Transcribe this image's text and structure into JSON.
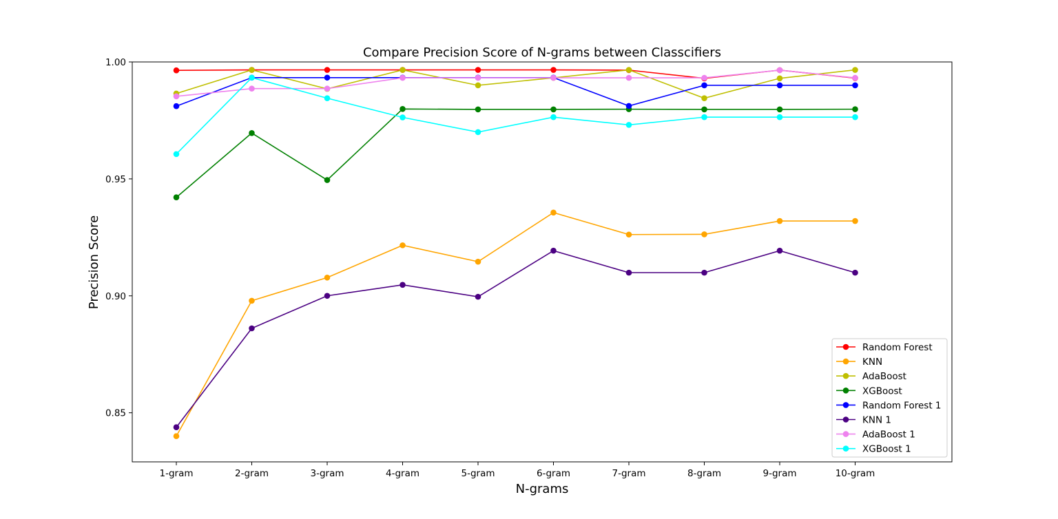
{
  "chart_data": {
    "type": "line",
    "title": "Compare Precision Score of N-grams between Classcifiers",
    "xlabel": "N-grams",
    "ylabel": "Precision Score",
    "categories": [
      "1-gram",
      "2-gram",
      "3-gram",
      "4-gram",
      "5-gram",
      "6-gram",
      "7-gram",
      "8-gram",
      "9-gram",
      "10-gram"
    ],
    "ylim": [
      0.829,
      1.0
    ],
    "yticks": [
      0.85,
      0.9,
      0.95,
      1.0
    ],
    "ytick_labels": [
      "0.85",
      "0.90",
      "0.95",
      "1.00"
    ],
    "grid": false,
    "legend_position": "lower-right",
    "series": [
      {
        "name": "Random Forest",
        "color": "#ff0000",
        "values": [
          0.9964,
          0.9966,
          0.9966,
          0.9966,
          0.9966,
          0.9966,
          0.9965,
          0.993,
          0.9965,
          0.9931
        ]
      },
      {
        "name": "KNN",
        "color": "#ffa500",
        "values": [
          0.84,
          0.8979,
          0.9078,
          0.9216,
          0.9146,
          0.9356,
          0.9262,
          0.9263,
          0.932,
          0.932
        ]
      },
      {
        "name": "AdaBoost",
        "color": "#bfbf00",
        "values": [
          0.9865,
          0.9966,
          0.9885,
          0.9966,
          0.99,
          0.9932,
          0.9966,
          0.9845,
          0.993,
          0.9966
        ]
      },
      {
        "name": "XGBoost",
        "color": "#008000",
        "values": [
          0.9421,
          0.9696,
          0.9495,
          0.9799,
          0.9797,
          0.9797,
          0.9798,
          0.9797,
          0.9797,
          0.9798
        ]
      },
      {
        "name": "Random Forest 1",
        "color": "#0000ff",
        "values": [
          0.9811,
          0.9933,
          0.9933,
          0.9933,
          0.9933,
          0.9933,
          0.9812,
          0.99,
          0.99,
          0.99
        ]
      },
      {
        "name": "KNN 1",
        "color": "#4b0082",
        "values": [
          0.8438,
          0.8861,
          0.9,
          0.9047,
          0.8996,
          0.9193,
          0.9099,
          0.9099,
          0.9193,
          0.9099
        ]
      },
      {
        "name": "AdaBoost 1",
        "color": "#ee82ee",
        "values": [
          0.9853,
          0.9886,
          0.9886,
          0.9932,
          0.9932,
          0.9932,
          0.9932,
          0.9932,
          0.9965,
          0.9932
        ]
      },
      {
        "name": "XGBoost 1",
        "color": "#00ffff",
        "values": [
          0.9606,
          0.9933,
          0.9845,
          0.9763,
          0.97,
          0.9764,
          0.9731,
          0.9764,
          0.9764,
          0.9764
        ]
      }
    ]
  }
}
